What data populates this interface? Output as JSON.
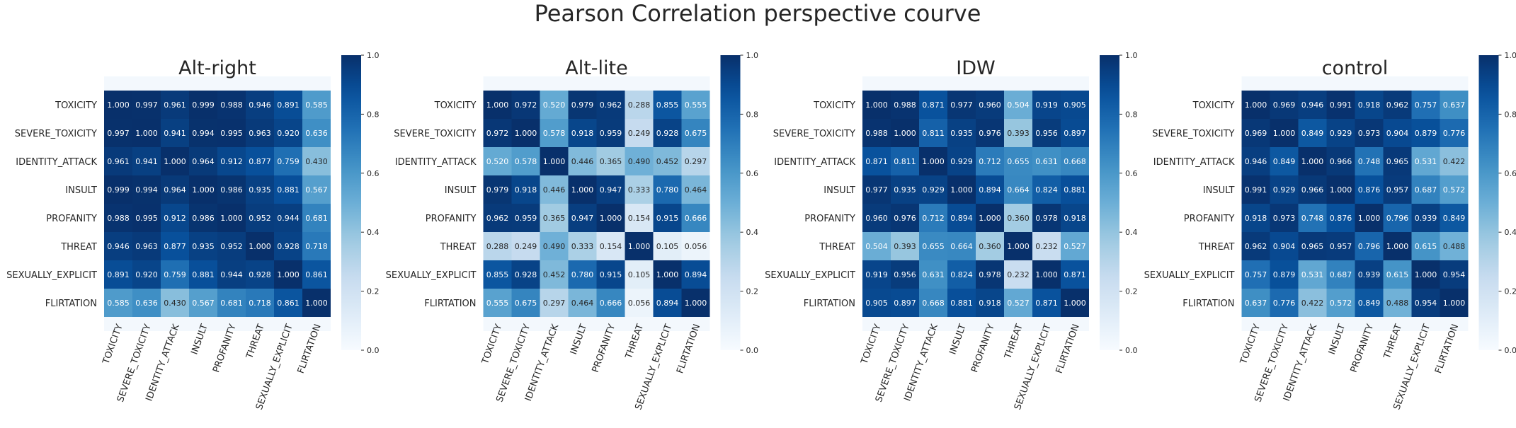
{
  "title": "Pearson Correlation perspective courve",
  "chart_data": [
    {
      "type": "heatmap",
      "title": "Alt-right",
      "labels": [
        "TOXICITY",
        "SEVERE_TOXICITY",
        "IDENTITY_ATTACK",
        "INSULT",
        "PROFANITY",
        "THREAT",
        "SEXUALLY_EXPLICIT",
        "FLIRTATION"
      ],
      "matrix": [
        [
          1.0,
          0.997,
          0.961,
          0.999,
          0.988,
          0.946,
          0.891,
          0.585
        ],
        [
          0.997,
          1.0,
          0.941,
          0.994,
          0.995,
          0.963,
          0.92,
          0.636
        ],
        [
          0.961,
          0.941,
          1.0,
          0.964,
          0.912,
          0.877,
          0.759,
          0.43
        ],
        [
          0.999,
          0.994,
          0.964,
          1.0,
          0.986,
          0.935,
          0.881,
          0.567
        ],
        [
          0.988,
          0.995,
          0.912,
          0.986,
          1.0,
          0.952,
          0.944,
          0.681
        ],
        [
          0.946,
          0.963,
          0.877,
          0.935,
          0.952,
          1.0,
          0.928,
          0.718
        ],
        [
          0.891,
          0.92,
          0.759,
          0.881,
          0.944,
          0.928,
          1.0,
          0.861
        ],
        [
          0.585,
          0.636,
          0.43,
          0.567,
          0.681,
          0.718,
          0.861,
          1.0
        ]
      ],
      "colorbar": {
        "range": [
          0.0,
          1.0
        ],
        "ticks": [
          "0.0",
          "0.2",
          "0.4",
          "0.6",
          "0.8",
          "1.0"
        ]
      },
      "colormap": "Blues"
    },
    {
      "type": "heatmap",
      "title": "Alt-lite",
      "labels": [
        "TOXICITY",
        "SEVERE_TOXICITY",
        "IDENTITY_ATTACK",
        "INSULT",
        "PROFANITY",
        "THREAT",
        "SEXUALLY_EXPLICIT",
        "FLIRTATION"
      ],
      "matrix": [
        [
          1.0,
          0.972,
          0.52,
          0.979,
          0.962,
          0.288,
          0.855,
          0.555
        ],
        [
          0.972,
          1.0,
          0.578,
          0.918,
          0.959,
          0.249,
          0.928,
          0.675
        ],
        [
          0.52,
          0.578,
          1.0,
          0.446,
          0.365,
          0.49,
          0.452,
          0.297
        ],
        [
          0.979,
          0.918,
          0.446,
          1.0,
          0.947,
          0.333,
          0.78,
          0.464
        ],
        [
          0.962,
          0.959,
          0.365,
          0.947,
          1.0,
          0.154,
          0.915,
          0.666
        ],
        [
          0.288,
          0.249,
          0.49,
          0.333,
          0.154,
          1.0,
          0.105,
          0.056
        ],
        [
          0.855,
          0.928,
          0.452,
          0.78,
          0.915,
          0.105,
          1.0,
          0.894
        ],
        [
          0.555,
          0.675,
          0.297,
          0.464,
          0.666,
          0.056,
          0.894,
          1.0
        ]
      ],
      "colorbar": {
        "range": [
          0.0,
          1.0
        ],
        "ticks": [
          "0.0",
          "0.2",
          "0.4",
          "0.6",
          "0.8",
          "1.0"
        ]
      },
      "colormap": "Blues"
    },
    {
      "type": "heatmap",
      "title": "IDW",
      "labels": [
        "TOXICITY",
        "SEVERE_TOXICITY",
        "IDENTITY_ATTACK",
        "INSULT",
        "PROFANITY",
        "THREAT",
        "SEXUALLY_EXPLICIT",
        "FLIRTATION"
      ],
      "matrix": [
        [
          1.0,
          0.988,
          0.871,
          0.977,
          0.96,
          0.504,
          0.919,
          0.905
        ],
        [
          0.988,
          1.0,
          0.811,
          0.935,
          0.976,
          0.393,
          0.956,
          0.897
        ],
        [
          0.871,
          0.811,
          1.0,
          0.929,
          0.712,
          0.655,
          0.631,
          0.668
        ],
        [
          0.977,
          0.935,
          0.929,
          1.0,
          0.894,
          0.664,
          0.824,
          0.881
        ],
        [
          0.96,
          0.976,
          0.712,
          0.894,
          1.0,
          0.36,
          0.978,
          0.918
        ],
        [
          0.504,
          0.393,
          0.655,
          0.664,
          0.36,
          1.0,
          0.232,
          0.527
        ],
        [
          0.919,
          0.956,
          0.631,
          0.824,
          0.978,
          0.232,
          1.0,
          0.871
        ],
        [
          0.905,
          0.897,
          0.668,
          0.881,
          0.918,
          0.527,
          0.871,
          1.0
        ]
      ],
      "colorbar": {
        "range": [
          0.0,
          1.0
        ],
        "ticks": [
          "0.0",
          "0.2",
          "0.4",
          "0.6",
          "0.8",
          "1.0"
        ]
      },
      "colormap": "Blues"
    },
    {
      "type": "heatmap",
      "title": "control",
      "labels": [
        "TOXICITY",
        "SEVERE_TOXICITY",
        "IDENTITY_ATTACK",
        "INSULT",
        "PROFANITY",
        "THREAT",
        "SEXUALLY_EXPLICIT",
        "FLIRTATION"
      ],
      "matrix": [
        [
          1.0,
          0.969,
          0.946,
          0.991,
          0.918,
          0.962,
          0.757,
          0.637
        ],
        [
          0.969,
          1.0,
          0.849,
          0.929,
          0.973,
          0.904,
          0.879,
          0.776
        ],
        [
          0.946,
          0.849,
          1.0,
          0.966,
          0.748,
          0.965,
          0.531,
          0.422
        ],
        [
          0.991,
          0.929,
          0.966,
          1.0,
          0.876,
          0.957,
          0.687,
          0.572
        ],
        [
          0.918,
          0.973,
          0.748,
          0.876,
          1.0,
          0.796,
          0.939,
          0.849
        ],
        [
          0.962,
          0.904,
          0.965,
          0.957,
          0.796,
          1.0,
          0.615,
          0.488
        ],
        [
          0.757,
          0.879,
          0.531,
          0.687,
          0.939,
          0.615,
          1.0,
          0.954
        ],
        [
          0.637,
          0.776,
          0.422,
          0.572,
          0.849,
          0.488,
          0.954,
          1.0
        ]
      ],
      "colorbar": {
        "range": [
          0.0,
          1.0
        ],
        "ticks": [
          "0.0",
          "0.2",
          "0.4",
          "0.6",
          "0.8",
          "1.0"
        ]
      },
      "colormap": "Blues"
    }
  ]
}
